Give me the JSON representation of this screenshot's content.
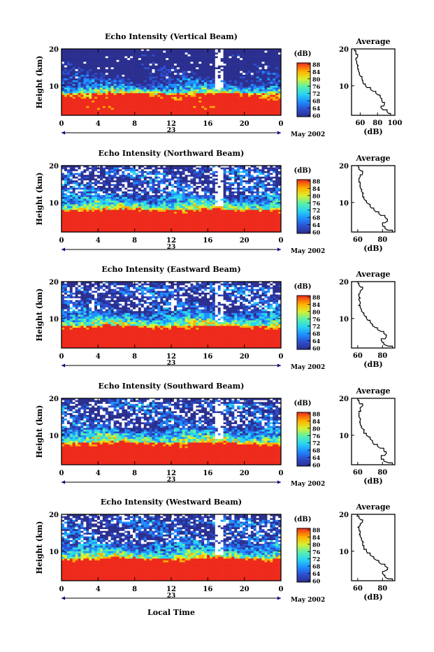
{
  "figure": {
    "xlabel": "Local Time",
    "date_label": "May 2002",
    "day_label": "23",
    "ylabel": "Height (km)",
    "colorbar_unit": "(dB)",
    "average_title": "Average",
    "average_unit": "(dB)"
  },
  "chart_data": [
    {
      "type": "heatmap",
      "title": "Echo Intensity (Vertical Beam)",
      "xlabel": "",
      "ylabel": "Height (km)",
      "x_ticks": [
        "0",
        "4",
        "8",
        "12",
        "16",
        "20",
        "0"
      ],
      "y_ticks": [
        "20",
        "10"
      ],
      "xlim": [
        0,
        24
      ],
      "ylim": [
        2,
        20
      ],
      "colorbar": {
        "label": "(dB)",
        "ticks": [
          "88",
          "84",
          "80",
          "76",
          "72",
          "68",
          "64",
          "60"
        ],
        "range": [
          60,
          88
        ]
      },
      "average_profile": {
        "title": "Average",
        "xlabel": "(dB)",
        "x_ticks": [
          "60",
          "80",
          "100"
        ],
        "xlim": [
          50,
          100
        ],
        "y_ticks": [
          "20",
          "10"
        ],
        "height_km": [
          2,
          3,
          4,
          5,
          6,
          7,
          8,
          9,
          10,
          11,
          12,
          13,
          14,
          15,
          16,
          17,
          18,
          19,
          20
        ],
        "db": [
          95,
          91,
          84,
          88,
          85,
          83,
          78,
          72,
          66,
          63,
          62,
          59,
          58,
          57,
          56,
          55,
          57,
          55,
          54
        ]
      }
    },
    {
      "type": "heatmap",
      "title": "Echo Intensity (Northward Beam)",
      "xlabel": "",
      "ylabel": "Height (km)",
      "x_ticks": [
        "0",
        "4",
        "8",
        "12",
        "16",
        "20",
        "0"
      ],
      "y_ticks": [
        "20",
        "10"
      ],
      "xlim": [
        0,
        24
      ],
      "ylim": [
        2,
        20
      ],
      "colorbar": {
        "label": "(dB)",
        "ticks": [
          "88",
          "84",
          "80",
          "76",
          "72",
          "68",
          "64",
          "60"
        ],
        "range": [
          60,
          88
        ]
      },
      "average_profile": {
        "title": "Average",
        "xlabel": "(dB)",
        "x_ticks": [
          "60",
          "80"
        ],
        "xlim": [
          55,
          90
        ],
        "y_ticks": [
          "20",
          "10"
        ],
        "height_km": [
          2,
          3,
          4,
          5,
          6,
          7,
          8,
          9,
          10,
          11,
          12,
          13,
          14,
          15,
          16,
          17,
          18,
          19,
          20
        ],
        "db": [
          88,
          82,
          80,
          84,
          82,
          77,
          73,
          70,
          67,
          65,
          64,
          63,
          62,
          62,
          61,
          62,
          64,
          61,
          60
        ]
      }
    },
    {
      "type": "heatmap",
      "title": "Echo Intensity (Eastward Beam)",
      "xlabel": "",
      "ylabel": "Height (km)",
      "x_ticks": [
        "0",
        "4",
        "8",
        "12",
        "16",
        "20",
        "0"
      ],
      "y_ticks": [
        "20",
        "10"
      ],
      "xlim": [
        0,
        24
      ],
      "ylim": [
        2,
        20
      ],
      "colorbar": {
        "label": "(dB)",
        "ticks": [
          "88",
          "84",
          "80",
          "76",
          "72",
          "68",
          "64",
          "60"
        ],
        "range": [
          60,
          88
        ]
      },
      "average_profile": {
        "title": "Average",
        "xlabel": "(dB)",
        "x_ticks": [
          "60",
          "80"
        ],
        "xlim": [
          55,
          90
        ],
        "y_ticks": [
          "20",
          "10"
        ],
        "height_km": [
          2,
          3,
          4,
          5,
          6,
          7,
          8,
          9,
          10,
          11,
          12,
          13,
          14,
          15,
          16,
          17,
          18,
          19,
          20
        ],
        "db": [
          88,
          81,
          79,
          83,
          81,
          76,
          72,
          70,
          67,
          65,
          63,
          62,
          62,
          61,
          61,
          62,
          64,
          61,
          60
        ]
      }
    },
    {
      "type": "heatmap",
      "title": "Echo Intensity (Southward Beam)",
      "xlabel": "",
      "ylabel": "Height (km)",
      "x_ticks": [
        "0",
        "4",
        "8",
        "12",
        "16",
        "20",
        "0"
      ],
      "y_ticks": [
        "20",
        "10"
      ],
      "xlim": [
        0,
        24
      ],
      "ylim": [
        2,
        20
      ],
      "colorbar": {
        "label": "(dB)",
        "ticks": [
          "88",
          "84",
          "80",
          "76",
          "72",
          "68",
          "64",
          "60"
        ],
        "range": [
          60,
          88
        ]
      },
      "average_profile": {
        "title": "Average",
        "xlabel": "(dB)",
        "x_ticks": [
          "60",
          "80"
        ],
        "xlim": [
          55,
          90
        ],
        "y_ticks": [
          "20",
          "10"
        ],
        "height_km": [
          2,
          3,
          4,
          5,
          6,
          7,
          8,
          9,
          10,
          11,
          12,
          13,
          14,
          15,
          16,
          17,
          18,
          19,
          20
        ],
        "db": [
          88,
          81,
          79,
          83,
          81,
          76,
          72,
          70,
          67,
          65,
          63,
          62,
          62,
          61,
          61,
          62,
          64,
          61,
          60
        ]
      }
    },
    {
      "type": "heatmap",
      "title": "Echo Intensity (Westward Beam)",
      "xlabel": "Local Time",
      "ylabel": "Height (km)",
      "x_ticks": [
        "0",
        "4",
        "8",
        "12",
        "16",
        "20",
        "0"
      ],
      "y_ticks": [
        "20",
        "10"
      ],
      "xlim": [
        0,
        24
      ],
      "ylim": [
        2,
        20
      ],
      "colorbar": {
        "label": "(dB)",
        "ticks": [
          "88",
          "84",
          "80",
          "76",
          "72",
          "68",
          "64",
          "60"
        ],
        "range": [
          60,
          88
        ]
      },
      "average_profile": {
        "title": "Average",
        "xlabel": "(dB)",
        "x_ticks": [
          "60",
          "80"
        ],
        "xlim": [
          55,
          90
        ],
        "y_ticks": [
          "20",
          "10"
        ],
        "height_km": [
          2,
          3,
          4,
          5,
          6,
          7,
          8,
          9,
          10,
          11,
          12,
          13,
          14,
          15,
          16,
          17,
          18,
          19,
          20
        ],
        "db": [
          88,
          82,
          80,
          84,
          82,
          77,
          73,
          70,
          67,
          65,
          64,
          63,
          62,
          62,
          61,
          62,
          64,
          61,
          60
        ]
      }
    }
  ]
}
